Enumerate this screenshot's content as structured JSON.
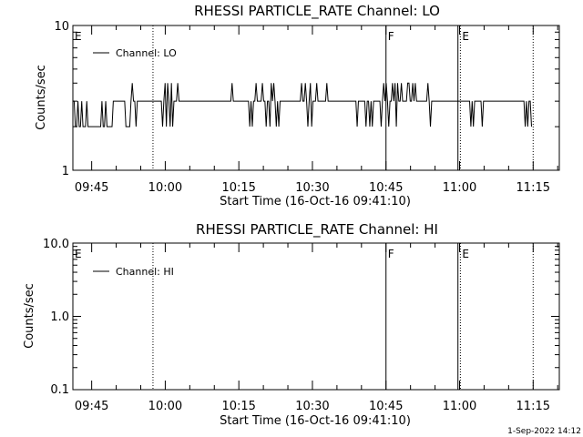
{
  "chart_data": [
    {
      "type": "line",
      "title": "RHESSI PARTICLE_RATE Channel: LO",
      "xlabel": "Start Time (16-Oct-16 09:41:10)",
      "ylabel": "Counts/sec",
      "yscale": "log",
      "ylim": [
        1,
        10
      ],
      "ytick_labels": [
        "1",
        "10"
      ],
      "xlim": [
        "09:41:10",
        "11:20:20"
      ],
      "xtick_labels": [
        "09:45",
        "10:00",
        "10:15",
        "10:30",
        "10:45",
        "11:00",
        "11:15"
      ],
      "legend": {
        "label": "Channel: LO",
        "placement": "top-left"
      },
      "event_markers": [
        {
          "label": "E",
          "time": "09:41:10",
          "style": "none"
        },
        {
          "label": "",
          "time": "09:57:30",
          "style": "dotted"
        },
        {
          "label": "F",
          "time": "10:45:00",
          "style": "solid"
        },
        {
          "label": "",
          "time": "10:59:40",
          "style": "solid"
        },
        {
          "label": "E",
          "time": "11:00:10",
          "style": "dotted"
        },
        {
          "label": "",
          "time": "11:15:00",
          "style": "dotted"
        }
      ],
      "series": [
        {
          "name": "Channel: LO",
          "x_start": "09:41:10",
          "x_end": "11:14:40",
          "values": [
            3,
            3,
            2,
            2,
            3,
            2,
            2,
            3,
            2,
            2,
            2,
            3,
            2,
            2,
            2,
            2,
            2,
            2,
            2,
            2,
            2,
            2,
            2,
            3,
            2,
            2,
            3,
            2,
            2,
            2,
            2,
            2,
            3,
            3,
            3,
            3,
            3,
            3,
            3,
            3,
            3,
            3,
            2,
            2,
            2,
            2,
            3,
            4,
            3,
            3,
            2,
            3,
            3,
            3,
            3,
            3,
            3,
            3,
            3,
            3,
            3,
            3,
            3,
            3,
            3,
            3,
            3,
            3,
            3,
            3,
            3,
            2,
            3,
            4,
            2,
            4,
            3,
            2,
            4,
            2,
            3,
            3,
            3,
            4,
            3,
            3,
            3,
            3,
            3,
            3,
            3,
            3,
            3,
            3,
            3,
            3,
            3,
            3,
            3,
            3,
            3,
            3,
            3,
            3,
            3,
            3,
            3,
            3,
            3,
            3,
            3,
            3,
            3,
            3,
            3,
            3,
            3,
            3,
            3,
            3,
            3,
            3,
            3,
            3,
            3,
            3,
            4,
            3,
            3,
            3,
            3,
            3,
            3,
            3,
            3,
            3,
            3,
            3,
            3,
            3,
            2,
            3,
            2,
            3,
            3,
            4,
            3,
            3,
            3,
            3,
            4,
            3,
            3,
            2,
            3,
            3,
            2,
            4,
            3,
            4,
            3,
            2,
            3,
            2,
            3,
            3,
            3,
            3,
            3,
            3,
            3,
            3,
            3,
            3,
            3,
            3,
            3,
            3,
            3,
            3,
            3,
            4,
            3,
            3,
            4,
            3,
            2,
            3,
            4,
            2,
            3,
            3,
            3,
            4,
            3,
            3,
            3,
            3,
            3,
            3,
            3,
            4,
            3,
            3,
            3,
            3,
            3,
            3,
            3,
            3,
            3,
            3,
            3,
            3,
            3,
            3,
            3,
            3,
            3,
            3,
            3,
            3,
            3,
            3,
            3,
            2,
            3,
            3,
            3,
            3,
            3,
            3,
            2,
            3,
            3,
            2,
            3,
            2,
            3,
            3,
            3,
            3,
            3,
            3,
            2,
            3,
            4,
            3,
            4,
            3,
            2,
            3,
            3,
            4,
            3,
            4,
            2,
            4,
            3,
            3,
            4,
            3,
            3,
            3,
            3,
            4,
            4,
            3,
            3,
            4,
            3,
            4,
            3,
            3,
            3,
            3,
            3,
            3,
            3,
            3,
            3,
            4,
            3,
            2,
            3,
            3,
            3,
            3,
            3,
            3,
            3,
            3,
            3,
            3,
            3,
            3,
            3,
            3,
            3,
            3,
            3,
            3,
            3,
            3,
            3,
            3,
            3,
            3,
            3,
            3,
            3,
            3,
            3,
            3,
            3,
            2,
            3,
            2,
            3,
            3,
            3,
            3,
            3,
            3,
            2,
            3,
            3,
            3,
            3,
            3,
            3,
            3,
            3,
            3,
            3,
            3,
            3,
            3,
            3,
            3,
            3,
            3,
            3,
            3,
            3,
            3,
            3,
            3,
            3,
            3,
            3,
            3,
            3,
            3,
            3,
            3,
            3,
            3,
            2,
            3,
            2,
            3,
            3,
            2
          ]
        }
      ]
    },
    {
      "type": "line",
      "title": "RHESSI PARTICLE_RATE Channel: HI",
      "xlabel": "Start Time (16-Oct-16 09:41:10)",
      "ylabel": "Counts/sec",
      "yscale": "log",
      "ylim": [
        0.1,
        10
      ],
      "ytick_labels": [
        "0.1",
        "1.0",
        "10.0"
      ],
      "xlim": [
        "09:41:10",
        "11:20:20"
      ],
      "xtick_labels": [
        "09:45",
        "10:00",
        "10:15",
        "10:30",
        "10:45",
        "11:00",
        "11:15"
      ],
      "legend": {
        "label": "Channel: HI",
        "placement": "top-left"
      },
      "event_markers": [
        {
          "label": "E",
          "time": "09:41:10",
          "style": "none"
        },
        {
          "label": "",
          "time": "09:57:30",
          "style": "dotted"
        },
        {
          "label": "F",
          "time": "10:45:00",
          "style": "solid"
        },
        {
          "label": "",
          "time": "10:59:40",
          "style": "solid"
        },
        {
          "label": "E",
          "time": "11:00:10",
          "style": "dotted"
        },
        {
          "label": "",
          "time": "11:15:00",
          "style": "dotted"
        }
      ],
      "series": [
        {
          "name": "Channel: HI",
          "values": []
        }
      ]
    }
  ],
  "footer": {
    "timestamp": "1-Sep-2022 14:12"
  }
}
